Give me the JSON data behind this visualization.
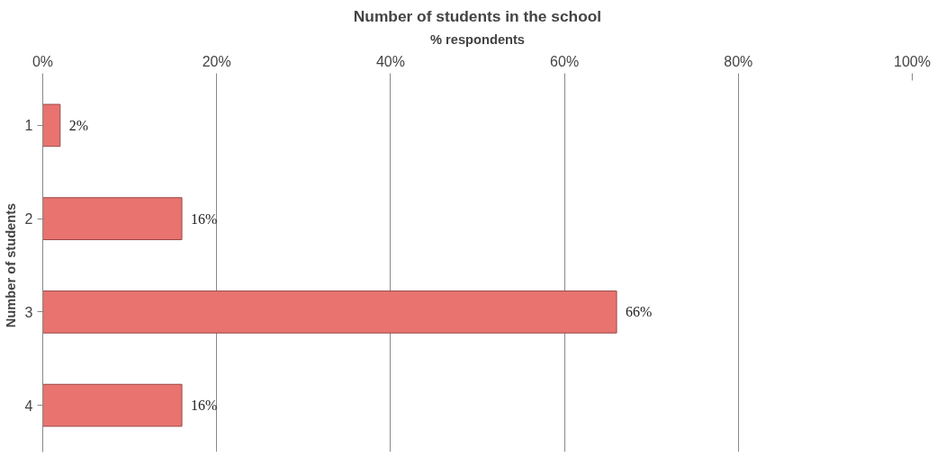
{
  "chart_data": {
    "type": "bar",
    "orientation": "horizontal",
    "title": "Number of students in the school",
    "xlabel": "% respondents",
    "ylabel": "Number of students",
    "categories": [
      "1",
      "2",
      "3",
      "4"
    ],
    "values": [
      2,
      16,
      66,
      16
    ],
    "value_labels": [
      "2%",
      "16%",
      "66%",
      "16%"
    ],
    "color": "#e8736f",
    "xlim": [
      0,
      100
    ],
    "xticks": [
      {
        "value": 0,
        "label": "0%"
      },
      {
        "value": 20,
        "label": "20%"
      },
      {
        "value": 40,
        "label": "40%"
      },
      {
        "value": 60,
        "label": "60%"
      },
      {
        "value": 80,
        "label": "80%"
      },
      {
        "value": 100,
        "label": "100%"
      }
    ],
    "grid": "x"
  }
}
